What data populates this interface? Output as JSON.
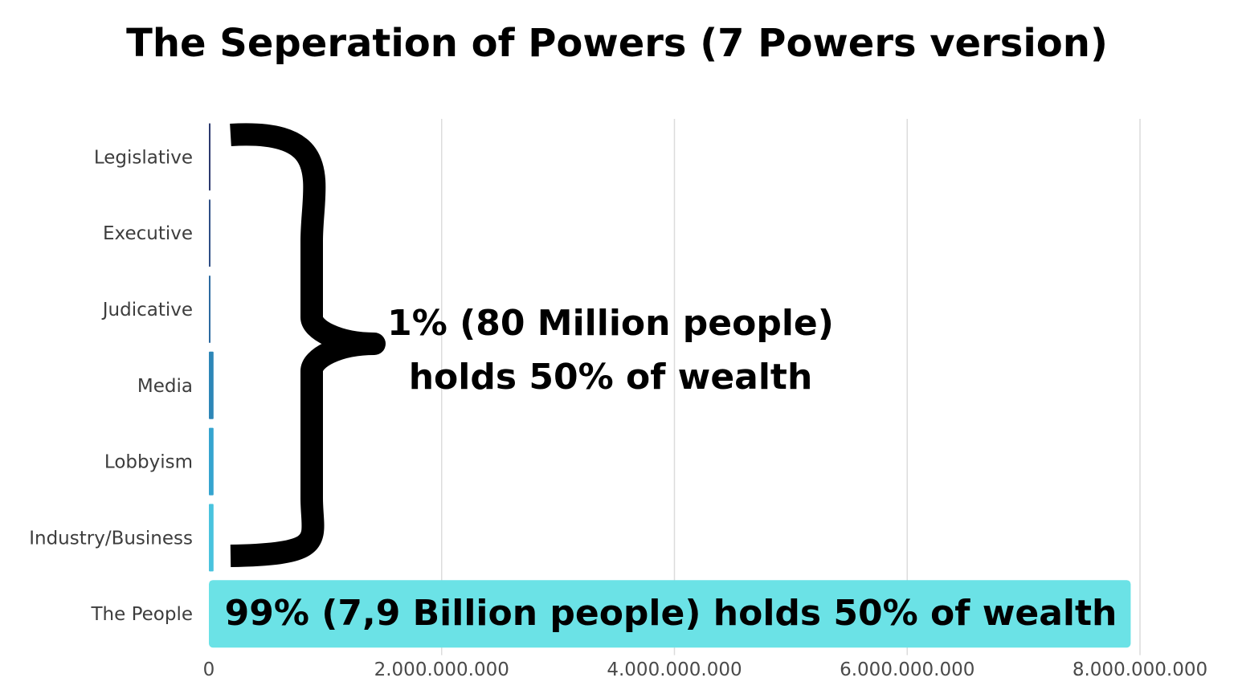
{
  "chart_data": {
    "type": "bar",
    "orientation": "horizontal",
    "title": "The Seperation of Powers (7 Powers version)",
    "categories": [
      "Legislative",
      "Executive",
      "Judicative",
      "Media",
      "Lobbyism",
      "Industry/Business",
      "The People"
    ],
    "values": [
      3000000,
      3000000,
      3000000,
      40000000,
      40000000,
      40000000,
      7920000000
    ],
    "colors": [
      "#2c3a6e",
      "#2f4f86",
      "#2c6aa0",
      "#2d86b7",
      "#35a4cf",
      "#49c3de",
      "#6be2e6"
    ],
    "xlim": [
      0,
      8000000000
    ],
    "xticks": [
      0,
      2000000000,
      4000000000,
      6000000000,
      8000000000
    ],
    "xtick_labels": [
      "0",
      "2.000.000.000",
      "4.000.000.000",
      "6.000.000.000",
      "8.000.000.000"
    ],
    "grid": "vertical",
    "annotations": {
      "bracket_line1": "1% (80 Million people)",
      "bracket_line2": "holds 50% of wealth",
      "bar_label": "99% (7,9 Billion people) holds 50% of wealth"
    }
  }
}
